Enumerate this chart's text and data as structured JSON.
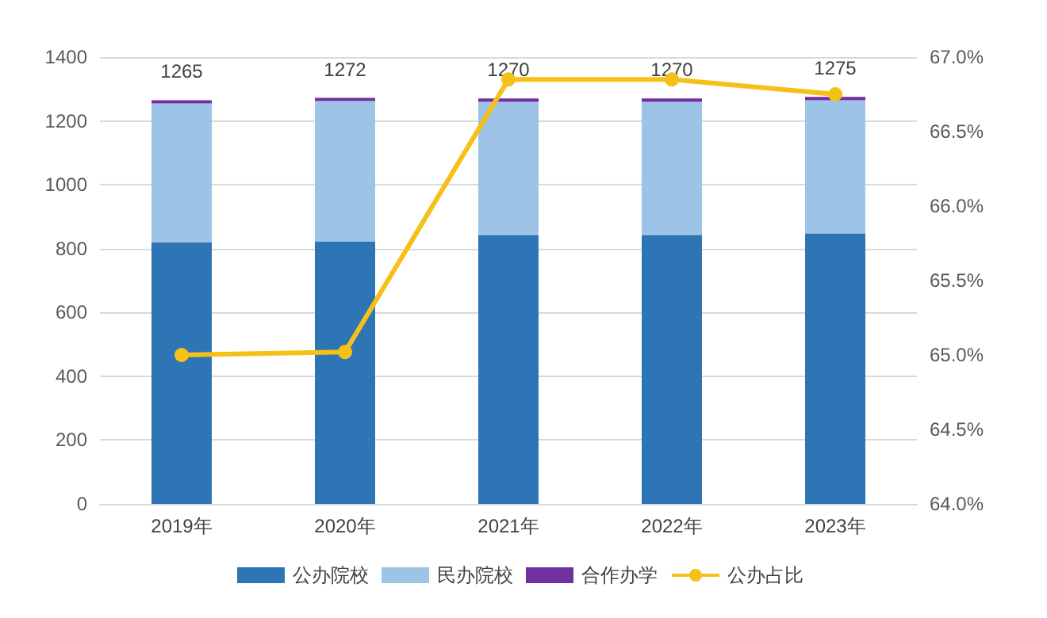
{
  "chart_data": {
    "type": "bar",
    "stacked": true,
    "categories": [
      "2019年",
      "2020年",
      "2021年",
      "2022年",
      "2023年"
    ],
    "series": [
      {
        "name": "公办院校",
        "color": "#2e75b6",
        "values": [
          820,
          822,
          843,
          843,
          848
        ]
      },
      {
        "name": "民办院校",
        "color": "#9dc3e6",
        "values": [
          435,
          440,
          417,
          417,
          417
        ]
      },
      {
        "name": "合作办学",
        "color": "#7030a0",
        "values": [
          10,
          10,
          10,
          10,
          10
        ]
      },
      {
        "name": "公办占比",
        "type": "line",
        "axis": "y2",
        "color": "#f5c018",
        "values": [
          65.0,
          65.02,
          66.85,
          66.85,
          66.75
        ]
      }
    ],
    "totals": [
      "1265",
      "1272",
      "1270",
      "1270",
      "1275"
    ],
    "ylim": [
      0,
      1400
    ],
    "yticks": [
      0,
      200,
      400,
      600,
      800,
      1000,
      1200,
      1400
    ],
    "y2lim": [
      64,
      67
    ],
    "y2ticks": [
      {
        "value": 64,
        "label": "64.0%"
      },
      {
        "value": 64.5,
        "label": "64.5%"
      },
      {
        "value": 65,
        "label": "65.0%"
      },
      {
        "value": 65.5,
        "label": "65.5%"
      },
      {
        "value": 66,
        "label": "66.0%"
      },
      {
        "value": 66.5,
        "label": "66.5%"
      },
      {
        "value": 67,
        "label": "67.0%"
      }
    ],
    "grid": "y",
    "legend": "bottom",
    "marker": "circle"
  }
}
